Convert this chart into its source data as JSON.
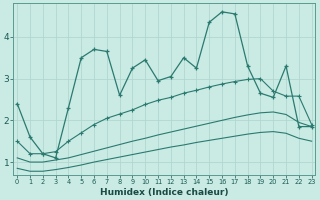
{
  "xlabel": "Humidex (Indice chaleur)",
  "ylabel": "",
  "background_color": "#caeae4",
  "grid_color": "#b0d8d0",
  "line_color": "#2a7a70",
  "x_ticks": [
    0,
    1,
    2,
    3,
    4,
    5,
    6,
    7,
    8,
    9,
    10,
    11,
    12,
    13,
    14,
    15,
    16,
    17,
    18,
    19,
    20,
    21,
    22,
    23
  ],
  "y_ticks": [
    1,
    2,
    3,
    4
  ],
  "ylim": [
    0.7,
    4.8
  ],
  "xlim": [
    -0.3,
    23.3
  ],
  "series1_x": [
    0,
    1,
    2,
    3,
    4,
    5,
    6,
    7,
    8,
    9,
    10,
    11,
    12,
    13,
    14,
    15,
    16,
    17,
    18,
    19,
    20,
    21,
    22,
    23
  ],
  "series1_y": [
    2.4,
    1.6,
    1.2,
    1.1,
    2.3,
    3.5,
    3.7,
    3.65,
    2.6,
    3.25,
    3.45,
    2.95,
    3.05,
    3.5,
    3.25,
    4.35,
    4.6,
    4.55,
    3.3,
    2.65,
    2.55,
    3.3,
    1.85,
    1.85
  ],
  "series2_x": [
    0,
    1,
    2,
    3,
    4,
    5,
    6,
    7,
    8,
    9,
    10,
    11,
    12,
    13,
    14,
    15,
    16,
    17,
    18,
    19,
    20,
    21,
    22,
    23
  ],
  "series2_y": [
    1.5,
    1.2,
    1.2,
    1.25,
    1.5,
    1.7,
    1.9,
    2.05,
    2.15,
    2.25,
    2.38,
    2.48,
    2.55,
    2.65,
    2.72,
    2.8,
    2.87,
    2.93,
    2.98,
    3.0,
    2.7,
    2.58,
    2.58,
    1.9
  ],
  "series3_x": [
    0,
    1,
    2,
    3,
    4,
    5,
    6,
    7,
    8,
    9,
    10,
    11,
    12,
    13,
    14,
    15,
    16,
    17,
    18,
    19,
    20,
    21,
    22,
    23
  ],
  "series3_y": [
    1.1,
    1.0,
    1.0,
    1.05,
    1.1,
    1.18,
    1.26,
    1.34,
    1.42,
    1.5,
    1.57,
    1.65,
    1.72,
    1.79,
    1.86,
    1.93,
    2.0,
    2.07,
    2.13,
    2.18,
    2.2,
    2.14,
    1.95,
    1.85
  ],
  "series4_x": [
    0,
    1,
    2,
    3,
    4,
    5,
    6,
    7,
    8,
    9,
    10,
    11,
    12,
    13,
    14,
    15,
    16,
    17,
    18,
    19,
    20,
    21,
    22,
    23
  ],
  "series4_y": [
    0.85,
    0.78,
    0.78,
    0.82,
    0.87,
    0.93,
    1.0,
    1.06,
    1.12,
    1.18,
    1.24,
    1.3,
    1.36,
    1.41,
    1.47,
    1.52,
    1.57,
    1.62,
    1.67,
    1.71,
    1.73,
    1.69,
    1.57,
    1.5
  ]
}
